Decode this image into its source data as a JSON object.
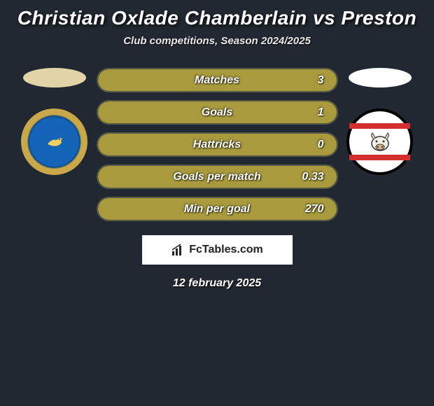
{
  "title": "Christian Oxlade Chamberlain vs Preston",
  "subtitle": "Club competitions, Season 2024/2025",
  "date": "12 february 2025",
  "branding": {
    "name": "FcTables.com",
    "icon_color": "#222222"
  },
  "left_team": {
    "ellipse_color": "#e0d4a8",
    "badge_outer_color": "#c9a84a",
    "badge_inner_color": "#1465b8"
  },
  "right_team": {
    "ellipse_color": "#ffffff",
    "badge_bg": "#ffffff",
    "badge_border": "#000000",
    "stripe_color": "#d32f2f"
  },
  "stats": [
    {
      "label": "Matches",
      "value": "3",
      "fill_pct": 100,
      "fill_color": "#a89a3d"
    },
    {
      "label": "Goals",
      "value": "1",
      "fill_pct": 100,
      "fill_color": "#a89a3d"
    },
    {
      "label": "Hattricks",
      "value": "0",
      "fill_pct": 100,
      "fill_color": "#a89a3d"
    },
    {
      "label": "Goals per match",
      "value": "0.33",
      "fill_pct": 100,
      "fill_color": "#a89a3d"
    },
    {
      "label": "Min per goal",
      "value": "270",
      "fill_pct": 100,
      "fill_color": "#a89a3d"
    }
  ],
  "styling": {
    "background_color": "#222831",
    "bar_border_color": "#565a47",
    "text_color": "#ffffff",
    "title_fontsize": 28,
    "subtitle_fontsize": 15,
    "label_fontsize": 16
  }
}
